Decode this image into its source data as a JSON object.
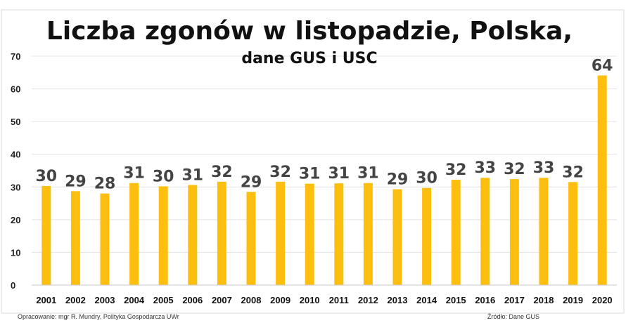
{
  "colors": {
    "bar": "#FDBF0F",
    "grid": "#e3e3e3",
    "axis": "#c8c8c8"
  },
  "footer": {
    "left": "Opracowanie: mgr R. Mundry, Polityka Gospodarcza UWr",
    "right": "Źródło: Dane GUS"
  },
  "chart_data": {
    "type": "bar",
    "title": "Liczba zgonów w listopadzie, Polska,",
    "subtitle": "dane GUS i USC",
    "xlabel": "",
    "ylabel": "",
    "ylim": [
      0,
      70
    ],
    "yticks": [
      0,
      10,
      20,
      30,
      40,
      50,
      60,
      70
    ],
    "grid": true,
    "legend": "none",
    "categories": [
      "2001",
      "2002",
      "2003",
      "2004",
      "2005",
      "2006",
      "2007",
      "2008",
      "2009",
      "2010",
      "2011",
      "2012",
      "2013",
      "2014",
      "2015",
      "2016",
      "2017",
      "2018",
      "2019",
      "2020"
    ],
    "values": [
      30.3,
      28.7,
      28.0,
      31.2,
      30.2,
      30.6,
      31.6,
      28.5,
      31.6,
      31.0,
      31.1,
      31.2,
      29.3,
      29.7,
      32.2,
      32.8,
      32.4,
      32.8,
      31.5,
      64.1
    ],
    "data_labels": [
      "30",
      "29",
      "28",
      "31",
      "30",
      "31",
      "32",
      "29",
      "32",
      "31",
      "31",
      "31",
      "29",
      "30",
      "32",
      "33",
      "32",
      "33",
      "32",
      "64"
    ]
  }
}
